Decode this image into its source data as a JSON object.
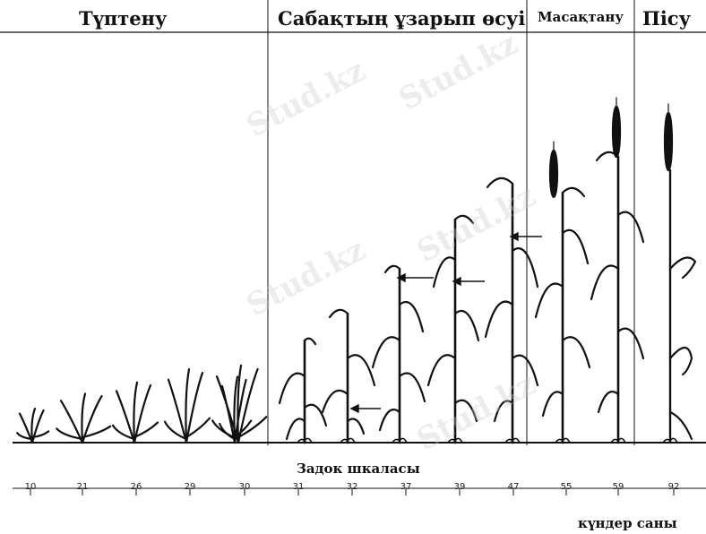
{
  "stages": {
    "tillering": "Түптену",
    "stem_elongation": "Сабақтың ұзарып өсуі",
    "heading": "Масақтану",
    "ripening": "Пісу"
  },
  "scale": {
    "title": "Задок шкаласы",
    "ticks": [
      "10",
      "21",
      "26",
      "29",
      "30",
      "31",
      "32",
      "37",
      "39",
      "47",
      "55",
      "59",
      "92"
    ],
    "days_label": "күндер саны"
  },
  "watermark": "Stud.kz",
  "colors": {
    "ink": "#111111",
    "watermark": "#d8d8d8",
    "background": "#ffffff"
  }
}
